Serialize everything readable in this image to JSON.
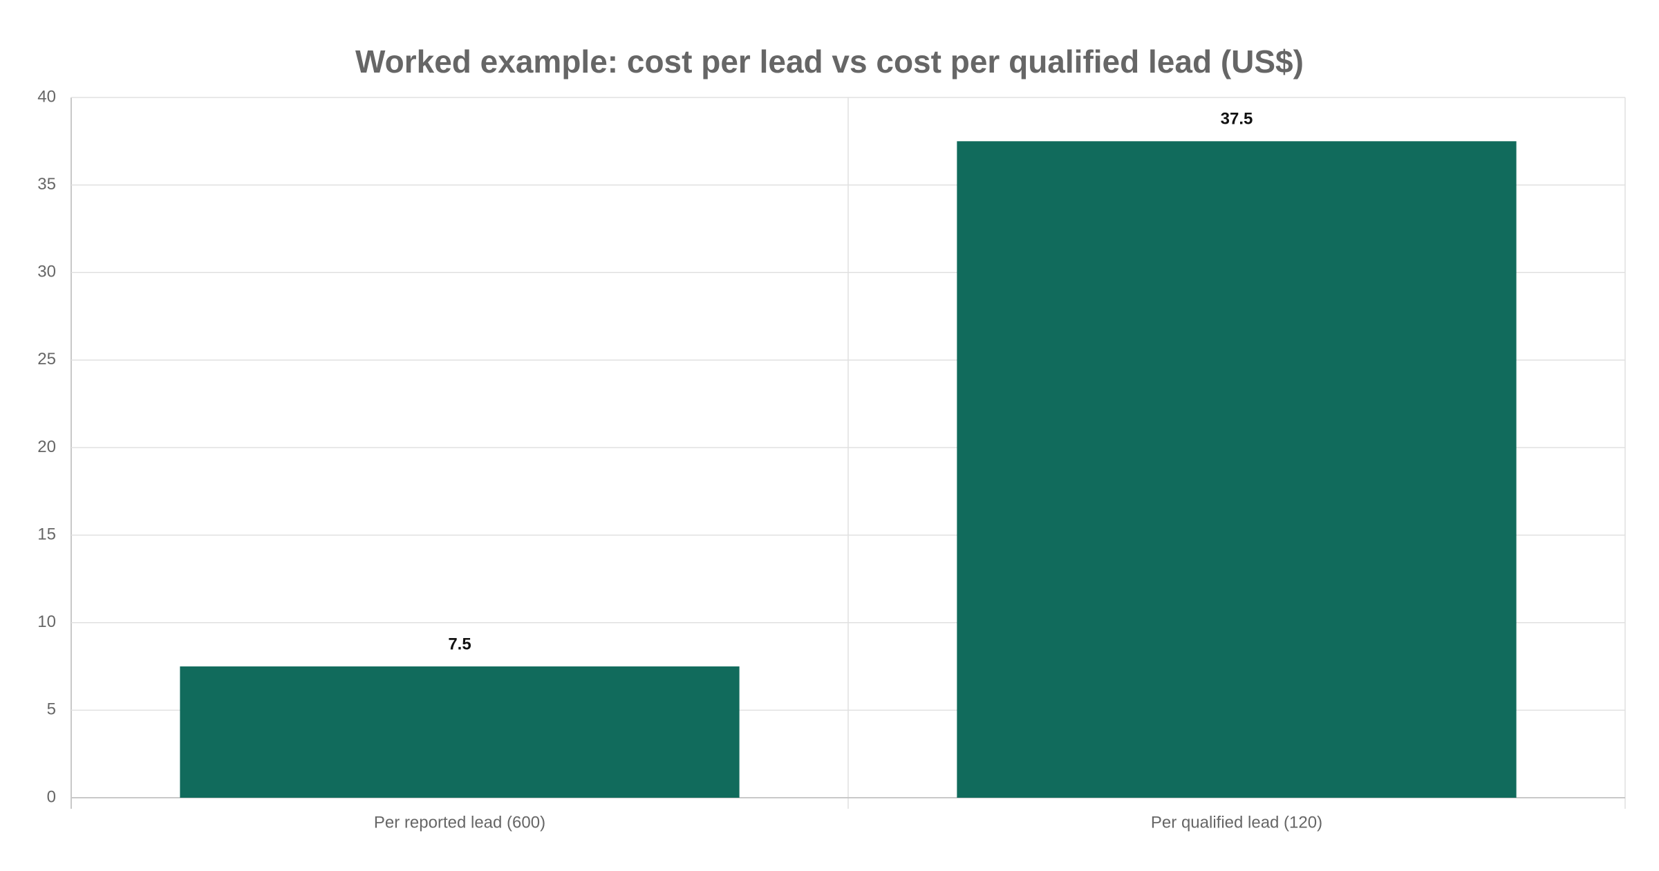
{
  "chart_data": {
    "type": "bar",
    "title": "Worked example: cost per lead vs cost per qualified lead (US$)",
    "categories": [
      "Per reported lead (600)",
      "Per qualified lead (120)"
    ],
    "values": [
      7.5,
      37.5
    ],
    "color": "#116b5c",
    "ylim": [
      0,
      40
    ],
    "yticks": [
      0,
      5,
      10,
      15,
      20,
      25,
      30,
      35,
      40
    ],
    "grid": true
  }
}
